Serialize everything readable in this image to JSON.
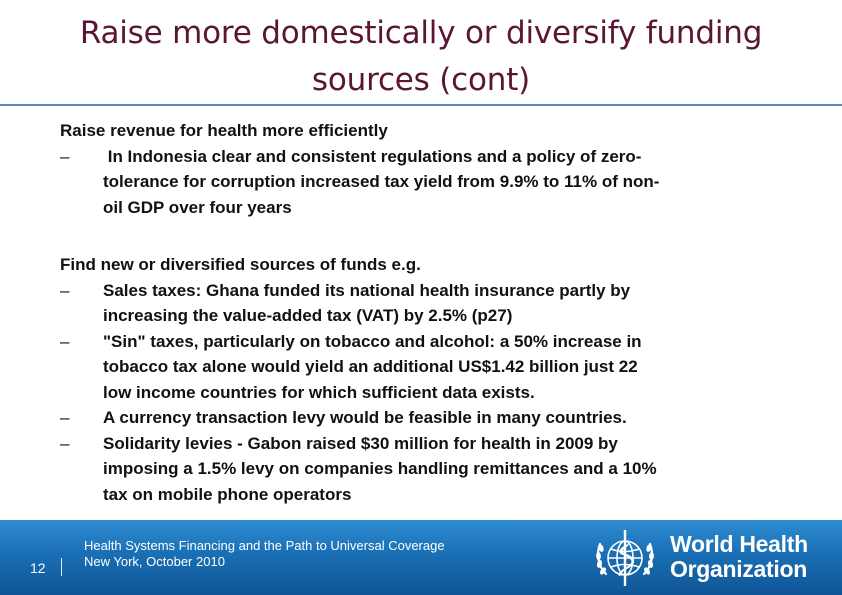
{
  "title": {
    "line1": "Raise more domestically or diversify funding",
    "line2": "sources (cont)"
  },
  "sections": [
    {
      "heading": "Raise revenue for health more efficiently",
      "bullets": [
        {
          "dash": "–",
          "lines": [
            " In Indonesia clear and consistent regulations and a policy of zero-",
            "tolerance for corruption increased tax yield from 9.9% to 11% of non-",
            "oil GDP over four years"
          ]
        }
      ]
    },
    {
      "heading": "Find new or diversified sources of funds e.g.",
      "bullets": [
        {
          "dash": "–",
          "lines": [
            "Sales taxes: Ghana funded its national health insurance partly by",
            "increasing the value-added tax (VAT) by 2.5% (p27)"
          ]
        },
        {
          "dash": "–",
          "lines": [
            "\"Sin\" taxes, particularly on tobacco and alcohol: a 50% increase in",
            "tobacco tax alone would yield an additional US$1.42 billion just 22",
            "low income countries for which sufficient data exists."
          ]
        },
        {
          "dash": "–",
          "lines": [
            "A currency transaction levy would be feasible in many countries."
          ]
        },
        {
          "dash": "–",
          "lines": [
            "Solidarity levies - Gabon raised $30 million for health in 2009 by",
            "imposing a 1.5% levy on companies handling remittances and a 10%",
            "tax on mobile phone operators"
          ]
        }
      ]
    }
  ],
  "footer": {
    "page_number": "12",
    "line1": "Health Systems Financing and the Path to Universal Coverage",
    "line2": "New York, October 2010",
    "org_line1": "World Health",
    "org_line2": "Organization"
  },
  "colors": {
    "title": "#5a1634",
    "rule": "#5b8bb6",
    "footer_top": "#2f8cd2",
    "footer_bottom": "#0f5596"
  },
  "icons": {
    "logo": "who-emblem-icon"
  }
}
